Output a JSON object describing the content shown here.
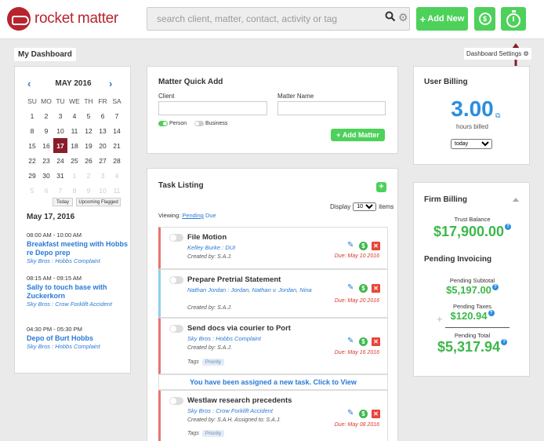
{
  "header": {
    "logo_text": "rocket matter",
    "search_placeholder": "search client, matter, contact, activity or tag",
    "add_new_label": "Add New",
    "billing_icon": "dollar-circle-icon",
    "timer_icon": "stopwatch-icon"
  },
  "dashboard": {
    "title": "My Dashboard",
    "settings_label": "Dashboard Settings"
  },
  "calendar": {
    "month_label": "MAY 2016",
    "weekdays": [
      "SU",
      "MO",
      "TU",
      "WE",
      "TH",
      "FR",
      "SA"
    ],
    "days": [
      [
        "1",
        "2",
        "3",
        "4",
        "5",
        "6",
        "7"
      ],
      [
        "8",
        "9",
        "10",
        "11",
        "12",
        "13",
        "14"
      ],
      [
        "15",
        "16",
        "17",
        "18",
        "19",
        "20",
        "21"
      ],
      [
        "22",
        "23",
        "24",
        "25",
        "26",
        "27",
        "28"
      ],
      [
        "29",
        "30",
        "31",
        "1",
        "2",
        "3",
        "4"
      ],
      [
        "5",
        "6",
        "7",
        "8",
        "9",
        "10",
        "11"
      ]
    ],
    "selected_day": "17",
    "today_button": "Today",
    "upcoming_button": "Upcoming Flagged",
    "selected_date": "May 17, 2016",
    "events": [
      {
        "time": "08:00 AM - 10:00 AM",
        "name": "Breakfast meeting with Hobbs re Depo prep",
        "matter": "Sky Bros : Hobbs Complaint"
      },
      {
        "time": "08:15 AM - 09:15 AM",
        "name": "Sally to touch base with Zuckerkorn",
        "matter": "Sky Bros : Crow Forklift Accident"
      },
      {
        "time": "04:30 PM - 05:30 PM",
        "name": "Depo of Burt Hobbs",
        "matter": "Sky Bros : Hobbs Complaint"
      }
    ]
  },
  "matter_quick_add": {
    "title": "Matter Quick Add",
    "client_label": "Client",
    "matter_name_label": "Matter Name",
    "client_value": "",
    "matter_name_value": "",
    "person_label": "Person",
    "business_label": "Business",
    "add_button": "Add Matter"
  },
  "task_listing": {
    "title": "Task Listing",
    "display_label": "Display",
    "display_value": "10",
    "items_label": "items",
    "viewing_label": "Viewing:",
    "viewing_pending": "Pending",
    "viewing_due": "Due",
    "notice": "You have been assigned a new task. Click to View",
    "tasks": [
      {
        "title": "File Motion",
        "sub": "Kelley Burke : DUI",
        "created": "Created by: S.A.J.",
        "due": "Due: May 10 2016",
        "tag": "",
        "color": "#e8756d"
      },
      {
        "title": "Prepare Pretrial Statement",
        "sub": "Nathan Jordan : Jordan, Nathan v. Jordan, Nina",
        "created": "Created by: S.A.J.",
        "due": "Due: May 20 2016",
        "tag": "",
        "color": "#8fd0ea"
      },
      {
        "title": "Send docs via courier to Port",
        "sub": "Sky Bros : Hobbs Complaint",
        "created": "Created by: S.A.J.",
        "due": "Due: May 16 2016",
        "tag": "Priority",
        "color": "#e8756d"
      },
      {
        "title": "Westlaw research precedents",
        "sub": "Sky Bros : Crow Forklift Accident",
        "created": "Created by: S.A.H.  Assigned to: S.A.J.",
        "due": "Due: May 08 2016",
        "tag": "Priority",
        "color": "#e8756d"
      }
    ],
    "tags_label": "Tags"
  },
  "user_billing": {
    "title": "User Billing",
    "hours": "3.00",
    "hours_label": "hours billed",
    "period": "today"
  },
  "firm_billing": {
    "title": "Firm Billing",
    "trust_label": "Trust Balance",
    "trust_value": "$17,900.00",
    "pending_title": "Pending Invoicing",
    "subtotal_label": "Pending Subtotal",
    "subtotal_value": "$5,197.00",
    "taxes_label": "Pending Taxes",
    "taxes_value": "$120.94",
    "total_label": "Pending Total",
    "total_value": "$5,317.94"
  },
  "colors": {
    "brand": "#b8242e",
    "accent_green": "#4dd15a",
    "link_blue": "#2a7ad5",
    "money_green": "#3cb84a",
    "annotation_arrow": "#8a1c2a"
  }
}
